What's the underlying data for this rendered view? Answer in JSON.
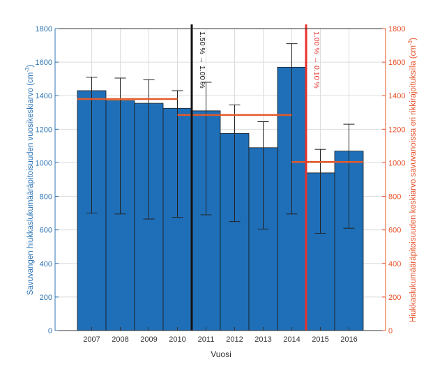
{
  "colors": {
    "bar": "#1f6fb8",
    "bar_edge": "#1a1a1a",
    "left_axis": "#2e75b6",
    "right_axis": "#e8532b",
    "mean_line": "#e35a2a",
    "limit_red": "#e8322a",
    "limit_black": "#111111",
    "error_bar": "#222222",
    "grid": "#dcdcdc",
    "tick_text": "#333333"
  },
  "chart_data": {
    "type": "bar",
    "title": "",
    "xlabel": "Vuosi",
    "ylabel_left": "Savuvangen hiukkaslukumääräpitoisuuden vuosikeskiarvo (cm",
    "ylabel_left_sup": "-3",
    "ylabel_left_end": ")",
    "ylabel_right": "Hiukkaslukumääräpitoisuuden keskiarvo savuvanoissa eri rikkirajoituksilla (cm",
    "ylabel_right_sup": "-3",
    "ylabel_right_end": ")",
    "ylim": [
      0,
      1800
    ],
    "yticks": [
      0,
      200,
      400,
      600,
      800,
      1000,
      1200,
      1400,
      1600,
      1800
    ],
    "categories": [
      "2007",
      "2008",
      "2009",
      "2010",
      "2011",
      "2012",
      "2013",
      "2014",
      "2015",
      "2016"
    ],
    "values": [
      1430,
      1370,
      1355,
      1325,
      1310,
      1175,
      1090,
      1570,
      940,
      1070
    ],
    "error_low": [
      700,
      695,
      665,
      675,
      690,
      650,
      605,
      695,
      580,
      610
    ],
    "error_high": [
      1510,
      1505,
      1495,
      1430,
      1480,
      1345,
      1245,
      1710,
      1080,
      1230
    ],
    "grid": true,
    "period_means": [
      {
        "from_index": 0,
        "to_index": 3.5,
        "value": 1380
      },
      {
        "from_index": 3.5,
        "to_index": 7.5,
        "value": 1285
      },
      {
        "from_index": 7.5,
        "to_index": 9,
        "value": 1005
      }
    ],
    "limit_lines": [
      {
        "at_index": 3.5,
        "label": "1.50 % → 1.00 %",
        "style": "black"
      },
      {
        "at_index": 7.5,
        "label": "1.00 % → 0.10 %",
        "style": "red"
      }
    ]
  }
}
